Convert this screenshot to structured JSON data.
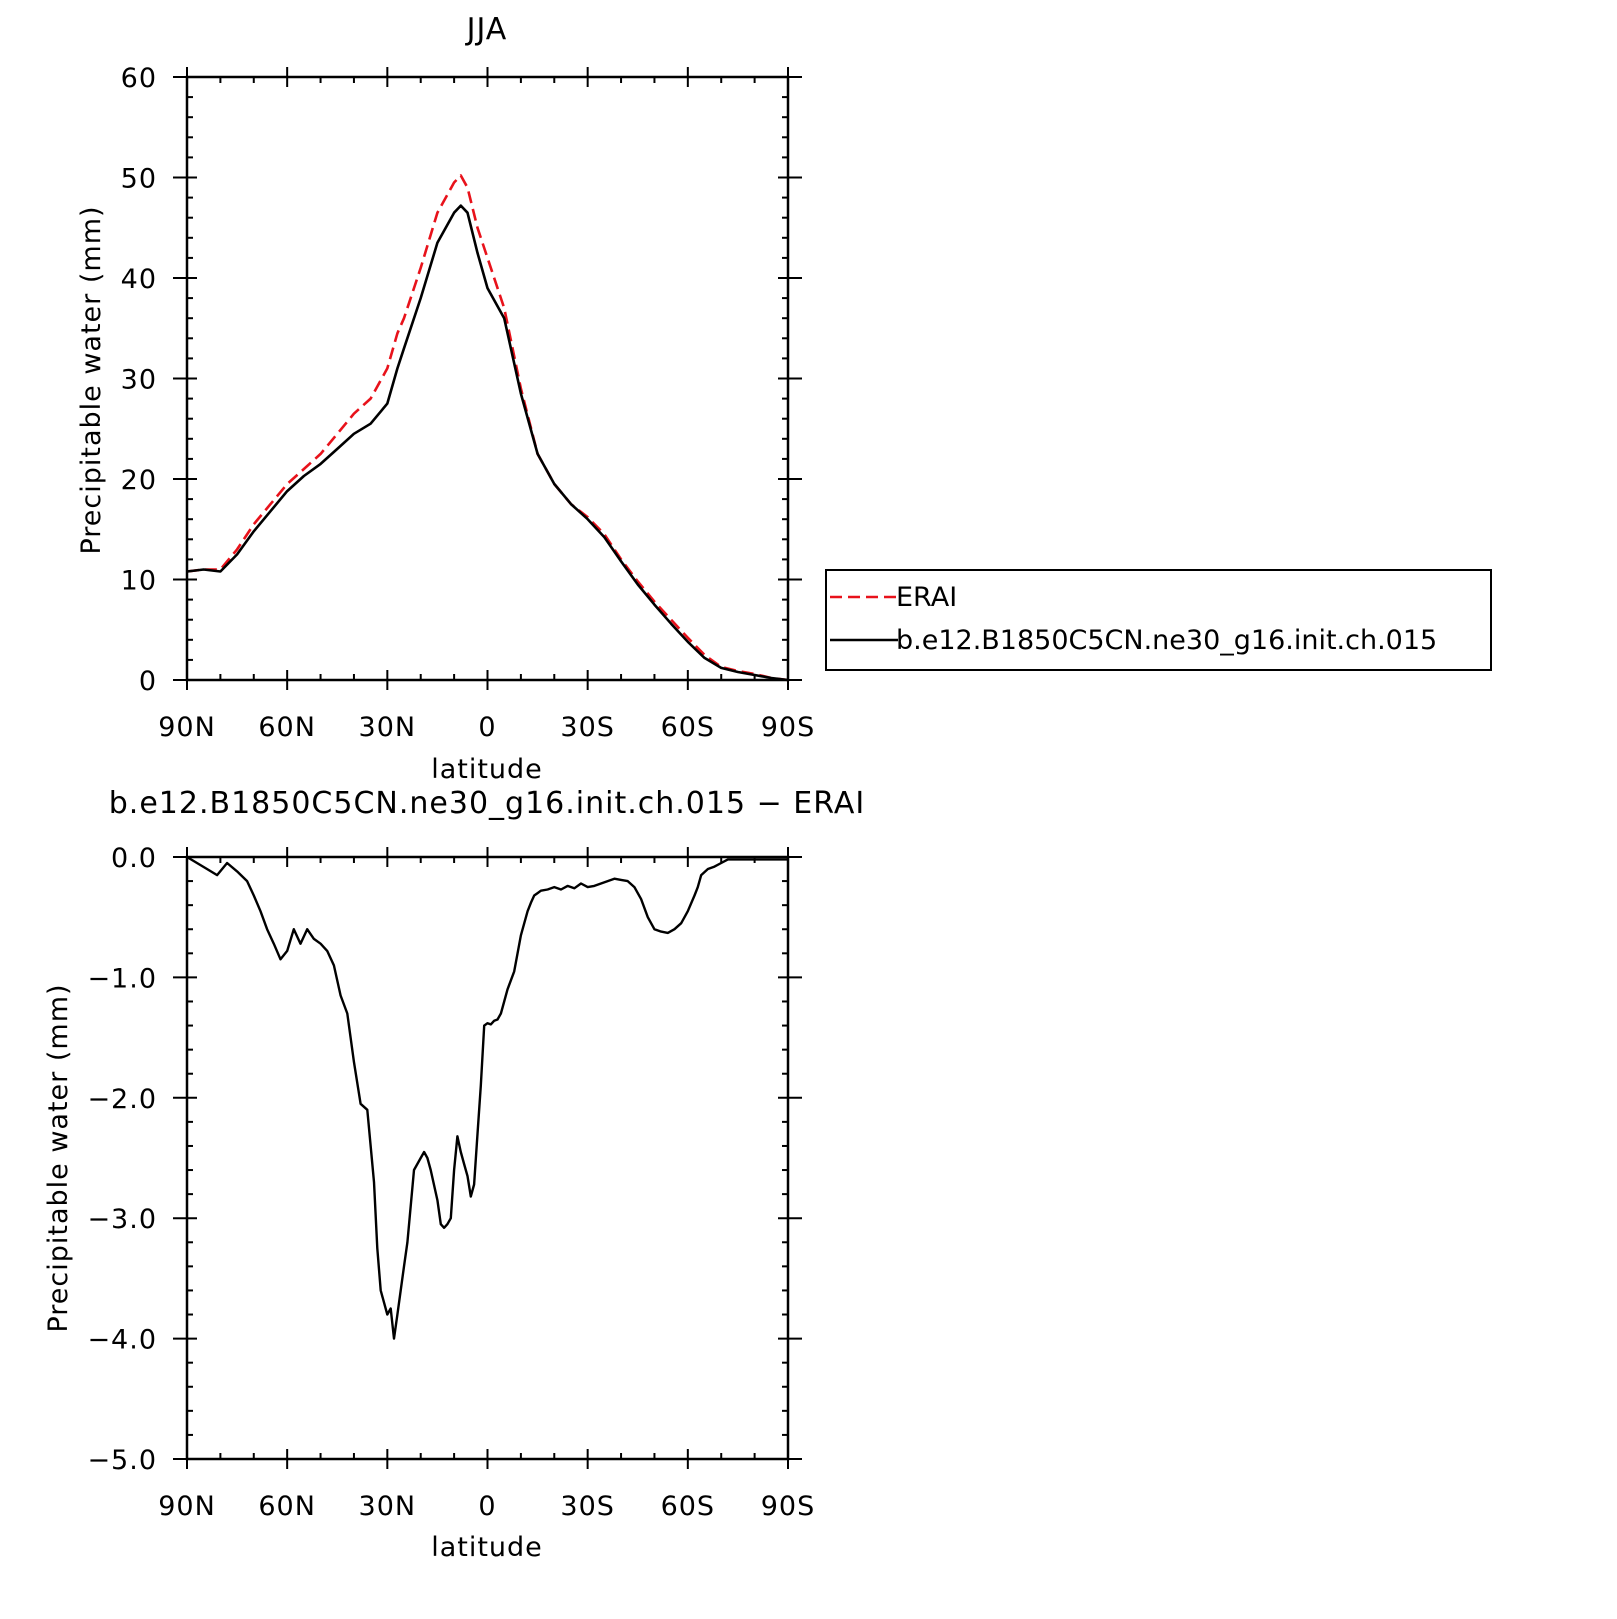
{
  "chart_data": [
    {
      "type": "line",
      "title": "JJA",
      "xlabel": "latitude",
      "ylabel": "Precipitable water (mm)",
      "xlim": [
        90,
        -90
      ],
      "ylim": [
        0,
        60
      ],
      "xticks": [
        90,
        60,
        30,
        0,
        -30,
        -60,
        -90
      ],
      "xtick_labels": [
        "90N",
        "60N",
        "30N",
        "0",
        "30S",
        "60S",
        "90S"
      ],
      "yticks": [
        0,
        10,
        20,
        30,
        40,
        50,
        60
      ],
      "ytick_labels": [
        "0",
        "10",
        "20",
        "30",
        "40",
        "50",
        "60"
      ],
      "legend_position": "right",
      "x": [
        90,
        85,
        80,
        75,
        70,
        65,
        60,
        55,
        50,
        45,
        40,
        35,
        30,
        27,
        25,
        20,
        15,
        10,
        8,
        6,
        3,
        0,
        -5,
        -10,
        -15,
        -20,
        -25,
        -30,
        -35,
        -40,
        -45,
        -50,
        -55,
        -60,
        -65,
        -70,
        -75,
        -80,
        -85,
        -90
      ],
      "series": [
        {
          "name": "ERAI",
          "color": "#e8121b",
          "dash": "dashed",
          "values": [
            10.8,
            11.0,
            11.0,
            13.0,
            15.5,
            17.5,
            19.5,
            21.0,
            22.5,
            24.5,
            26.5,
            28.0,
            31.0,
            34.5,
            36.0,
            41.0,
            46.5,
            49.5,
            50.2,
            49.0,
            45.0,
            42.0,
            37.0,
            29.0,
            22.5,
            19.5,
            17.5,
            16.2,
            14.5,
            12.0,
            9.8,
            7.8,
            6.0,
            4.2,
            2.5,
            1.3,
            0.9,
            0.6,
            0.2,
            0.0
          ]
        },
        {
          "name": "b.e12.B1850C5CN.ne30_g16.init.ch.015",
          "color": "#000000",
          "dash": "solid",
          "values": [
            10.8,
            11.0,
            10.8,
            12.5,
            14.8,
            16.8,
            18.8,
            20.3,
            21.5,
            23.0,
            24.5,
            25.5,
            27.5,
            31.0,
            33.0,
            38.0,
            43.5,
            46.5,
            47.2,
            46.5,
            42.5,
            39.0,
            36.0,
            28.5,
            22.5,
            19.5,
            17.5,
            16.0,
            14.2,
            11.8,
            9.5,
            7.5,
            5.6,
            3.8,
            2.2,
            1.2,
            0.8,
            0.5,
            0.2,
            0.0
          ]
        }
      ]
    },
    {
      "type": "line",
      "title": "b.e12.B1850C5CN.ne30_g16.init.ch.015 − ERAI",
      "xlabel": "latitude",
      "ylabel": "Precipitable water (mm)",
      "xlim": [
        90,
        -90
      ],
      "ylim": [
        -5.0,
        0.0
      ],
      "xticks": [
        90,
        60,
        30,
        0,
        -30,
        -60,
        -90
      ],
      "xtick_labels": [
        "90N",
        "60N",
        "30N",
        "0",
        "30S",
        "60S",
        "90S"
      ],
      "yticks": [
        0.0,
        -1.0,
        -2.0,
        -3.0,
        -4.0,
        -5.0
      ],
      "ytick_labels": [
        "0.0",
        "−1.0",
        "−2.0",
        "−3.0",
        "−4.0",
        "−5.0"
      ],
      "x": [
        90,
        87,
        84,
        81,
        78,
        75,
        72,
        70,
        68,
        66,
        64,
        62,
        60,
        58,
        56,
        54,
        52,
        50,
        48,
        46,
        44,
        42,
        40,
        38,
        36,
        34,
        33,
        32,
        30,
        29,
        28,
        27,
        26,
        25,
        24,
        22,
        20,
        19,
        18,
        17,
        15,
        14,
        13,
        12,
        11,
        10,
        9,
        8,
        7,
        6,
        5,
        4,
        3,
        2,
        1,
        0,
        -1,
        -2,
        -3,
        -4,
        -5,
        -6,
        -8,
        -10,
        -12,
        -13,
        -14,
        -15,
        -16,
        -18,
        -20,
        -22,
        -24,
        -26,
        -28,
        -30,
        -32,
        -34,
        -36,
        -38,
        -40,
        -42,
        -44,
        -46,
        -48,
        -50,
        -52,
        -54,
        -56,
        -58,
        -60,
        -62,
        -63,
        -64,
        -66,
        -68,
        -70,
        -72,
        -74,
        -76,
        -78,
        -80,
        -82,
        -84,
        -86,
        -88,
        -90
      ],
      "values": [
        0.0,
        -0.05,
        -0.1,
        -0.15,
        -0.05,
        -0.12,
        -0.2,
        -0.32,
        -0.45,
        -0.6,
        -0.72,
        -0.85,
        -0.78,
        -0.6,
        -0.72,
        -0.6,
        -0.68,
        -0.72,
        -0.78,
        -0.9,
        -1.15,
        -1.3,
        -1.7,
        -2.05,
        -2.1,
        -2.7,
        -3.25,
        -3.6,
        -3.8,
        -3.75,
        -4.0,
        -3.8,
        -3.6,
        -3.4,
        -3.2,
        -2.6,
        -2.5,
        -2.45,
        -2.5,
        -2.6,
        -2.85,
        -3.05,
        -3.08,
        -3.05,
        -3.0,
        -2.6,
        -2.32,
        -2.45,
        -2.55,
        -2.65,
        -2.82,
        -2.72,
        -2.3,
        -1.9,
        -1.4,
        -1.38,
        -1.39,
        -1.36,
        -1.35,
        -1.3,
        -1.2,
        -1.1,
        -0.95,
        -0.65,
        -0.45,
        -0.38,
        -0.32,
        -0.3,
        -0.28,
        -0.27,
        -0.25,
        -0.27,
        -0.24,
        -0.26,
        -0.22,
        -0.25,
        -0.24,
        -0.22,
        -0.2,
        -0.18,
        -0.19,
        -0.2,
        -0.25,
        -0.35,
        -0.5,
        -0.6,
        -0.62,
        -0.63,
        -0.6,
        -0.55,
        -0.45,
        -0.32,
        -0.25,
        -0.15,
        -0.1,
        -0.08,
        -0.05,
        -0.02,
        -0.02,
        -0.02,
        -0.02,
        -0.02,
        -0.02,
        -0.02,
        -0.02,
        -0.02,
        -0.02
      ]
    }
  ]
}
